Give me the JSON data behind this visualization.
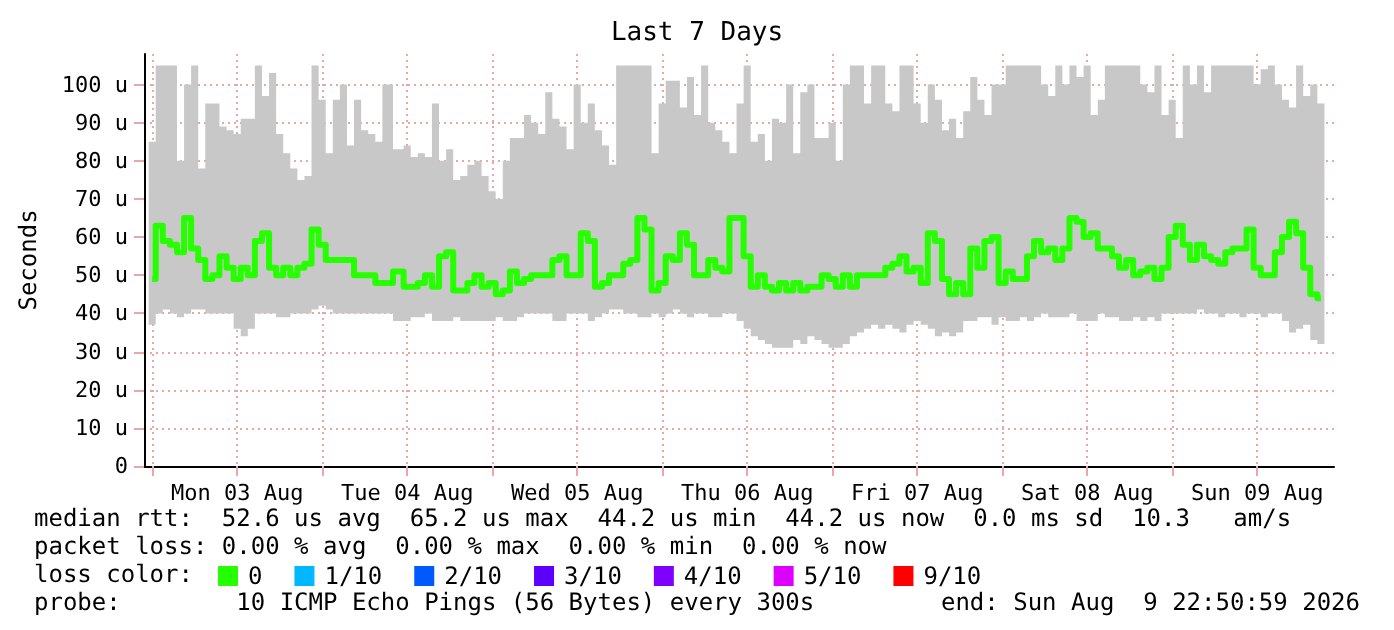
{
  "chart_data": {
    "type": "line",
    "title": "Last 7 Days",
    "ylabel": "Seconds",
    "annotations": [
      "median rtt:  52.6 us avg  65.2 us max  44.2 us min  44.2 us now  0.0 ms sd  10.3   am/s",
      "packet loss: 0.00 % avg  0.00 % max  0.00 % min  0.00 % now",
      "loss color:",
      "probe:        10 ICMP Echo Pings (56 Bytes) every 300s",
      "end: Sun Aug  9 22:50:59 2026"
    ],
    "xlim": [
      "2026-08-02T22:51",
      "2026-08-09T22:51"
    ],
    "xticks": [
      {
        "value": "2026-08-03T00:00",
        "label": null
      },
      {
        "value": "2026-08-03T12:00",
        "label": "Mon 03 Aug"
      },
      {
        "value": "2026-08-04T00:00",
        "label": null
      },
      {
        "value": "2026-08-04T12:00",
        "label": "Tue 04 Aug"
      },
      {
        "value": "2026-08-05T00:00",
        "label": null
      },
      {
        "value": "2026-08-05T12:00",
        "label": "Wed 05 Aug"
      },
      {
        "value": "2026-08-06T00:00",
        "label": null
      },
      {
        "value": "2026-08-06T12:00",
        "label": "Thu 06 Aug"
      },
      {
        "value": "2026-08-07T00:00",
        "label": null
      },
      {
        "value": "2026-08-07T12:00",
        "label": "Fri 07 Aug"
      },
      {
        "value": "2026-08-08T00:00",
        "label": null
      },
      {
        "value": "2026-08-08T12:00",
        "label": "Sat 08 Aug"
      },
      {
        "value": "2026-08-09T00:00",
        "label": null
      },
      {
        "value": "2026-08-09T12:00",
        "label": "Sun 09 Aug"
      }
    ],
    "ylim": [
      0,
      108
    ],
    "yticks": [
      {
        "value": 0,
        "label": "0"
      },
      {
        "value": 10,
        "label": "10 u"
      },
      {
        "value": 20,
        "label": "20 u"
      },
      {
        "value": 30,
        "label": "30 u"
      },
      {
        "value": 40,
        "label": "40 u"
      },
      {
        "value": 50,
        "label": "50 u"
      },
      {
        "value": 60,
        "label": "60 u"
      },
      {
        "value": 70,
        "label": "70 u"
      },
      {
        "value": 80,
        "label": "80 u"
      },
      {
        "value": 90,
        "label": "90 u"
      },
      {
        "value": 100,
        "label": "100 u"
      }
    ],
    "grid": true,
    "legend": "bottom",
    "series": [
      {
        "name": "0",
        "type": "step",
        "color": "#26ff00",
        "x": [
          "2026-08-03T00:00",
          "2026-08-03T01:00",
          "2026-08-03T02:00",
          "2026-08-03T03:00",
          "2026-08-03T04:00",
          "2026-08-03T05:00",
          "2026-08-03T06:00",
          "2026-08-03T07:00",
          "2026-08-03T08:00",
          "2026-08-03T09:00",
          "2026-08-03T10:00",
          "2026-08-03T11:00",
          "2026-08-03T12:00",
          "2026-08-03T13:00",
          "2026-08-03T14:00",
          "2026-08-03T15:00",
          "2026-08-03T16:00",
          "2026-08-03T17:00",
          "2026-08-03T18:00",
          "2026-08-03T19:00",
          "2026-08-03T20:00",
          "2026-08-03T21:00",
          "2026-08-03T22:00",
          "2026-08-03T23:00",
          "2026-08-04T00:00",
          "2026-08-04T01:00",
          "2026-08-04T02:00",
          "2026-08-04T03:00",
          "2026-08-04T04:00",
          "2026-08-04T05:00",
          "2026-08-04T06:00",
          "2026-08-04T07:00",
          "2026-08-04T08:00",
          "2026-08-04T09:00",
          "2026-08-04T11:00",
          "2026-08-04T12:00",
          "2026-08-04T13:00",
          "2026-08-04T14:00",
          "2026-08-04T15:00",
          "2026-08-04T16:00",
          "2026-08-04T17:00",
          "2026-08-04T18:00",
          "2026-08-04T19:00",
          "2026-08-04T20:00",
          "2026-08-04T21:00",
          "2026-08-04T22:00",
          "2026-08-04T23:00",
          "2026-08-05T00:00",
          "2026-08-05T01:00",
          "2026-08-05T02:00",
          "2026-08-05T03:00",
          "2026-08-05T04:00",
          "2026-08-05T05:00",
          "2026-08-05T06:00",
          "2026-08-05T07:00",
          "2026-08-05T08:00",
          "2026-08-05T09:00",
          "2026-08-05T10:00",
          "2026-08-05T11:00",
          "2026-08-05T12:00",
          "2026-08-05T13:00",
          "2026-08-05T14:00",
          "2026-08-05T15:00",
          "2026-08-05T16:00",
          "2026-08-05T17:00",
          "2026-08-05T18:00",
          "2026-08-05T19:00",
          "2026-08-05T20:00",
          "2026-08-05T21:00",
          "2026-08-05T22:00",
          "2026-08-05T23:00",
          "2026-08-06T00:00",
          "2026-08-06T01:00",
          "2026-08-06T02:00",
          "2026-08-06T03:00",
          "2026-08-06T04:00",
          "2026-08-06T05:00",
          "2026-08-06T06:00",
          "2026-08-06T07:00",
          "2026-08-06T08:00",
          "2026-08-06T09:00",
          "2026-08-06T10:00",
          "2026-08-06T11:00",
          "2026-08-06T12:00",
          "2026-08-06T13:00",
          "2026-08-06T14:00",
          "2026-08-06T15:00",
          "2026-08-06T16:00",
          "2026-08-06T17:00",
          "2026-08-06T18:00",
          "2026-08-06T19:00",
          "2026-08-06T20:00",
          "2026-08-06T21:00",
          "2026-08-06T22:00",
          "2026-08-06T23:00",
          "2026-08-07T00:00",
          "2026-08-07T01:00",
          "2026-08-07T02:00",
          "2026-08-07T03:00",
          "2026-08-07T04:00",
          "2026-08-07T05:00",
          "2026-08-07T06:00",
          "2026-08-07T07:00",
          "2026-08-07T08:00",
          "2026-08-07T09:00",
          "2026-08-07T10:00",
          "2026-08-07T11:00",
          "2026-08-07T12:00",
          "2026-08-07T13:00",
          "2026-08-07T14:00",
          "2026-08-07T15:00",
          "2026-08-07T16:00",
          "2026-08-07T17:00",
          "2026-08-07T18:00",
          "2026-08-07T19:00",
          "2026-08-07T20:00",
          "2026-08-07T21:00",
          "2026-08-07T22:00",
          "2026-08-07T23:00",
          "2026-08-08T00:00",
          "2026-08-08T01:00",
          "2026-08-08T02:00",
          "2026-08-08T03:00",
          "2026-08-08T04:00",
          "2026-08-08T05:00",
          "2026-08-08T06:00",
          "2026-08-08T07:00",
          "2026-08-08T08:00",
          "2026-08-08T09:00",
          "2026-08-08T10:00",
          "2026-08-08T11:00",
          "2026-08-08T12:00",
          "2026-08-08T13:00",
          "2026-08-08T14:00",
          "2026-08-08T15:00",
          "2026-08-08T16:00",
          "2026-08-08T17:00",
          "2026-08-08T18:00",
          "2026-08-08T19:00",
          "2026-08-08T20:00",
          "2026-08-08T21:00",
          "2026-08-08T22:00",
          "2026-08-08T23:00",
          "2026-08-09T00:00",
          "2026-08-09T01:00",
          "2026-08-09T02:00",
          "2026-08-09T03:00",
          "2026-08-09T04:00",
          "2026-08-09T05:00",
          "2026-08-09T06:00",
          "2026-08-09T07:00",
          "2026-08-09T08:00",
          "2026-08-09T09:00",
          "2026-08-09T10:00",
          "2026-08-09T11:00",
          "2026-08-09T12:00",
          "2026-08-09T13:00",
          "2026-08-09T14:00",
          "2026-08-09T15:00",
          "2026-08-09T16:00",
          "2026-08-09T17:00",
          "2026-08-09T18:00",
          "2026-08-09T19:00",
          "2026-08-09T20:00",
          "2026-08-09T21:00"
        ],
        "values": [
          49,
          63,
          59,
          58,
          56,
          65,
          57,
          54,
          49,
          50,
          55,
          52,
          49,
          52,
          50,
          59,
          61,
          52,
          50,
          52,
          50,
          52,
          53,
          62,
          58,
          54,
          54,
          54,
          54,
          50,
          50,
          50,
          48,
          48,
          51,
          47,
          47,
          48,
          50,
          47,
          55,
          56,
          46,
          46,
          48,
          50,
          47,
          48,
          45,
          46,
          51,
          48,
          49,
          50,
          50,
          50,
          54,
          55,
          50,
          50,
          61,
          59,
          47,
          48,
          50,
          50,
          53,
          54,
          65,
          62,
          46,
          48,
          55,
          54,
          61,
          58,
          50,
          50,
          54,
          52,
          51,
          65,
          65,
          55,
          47,
          50,
          47,
          46,
          48,
          46,
          48,
          46,
          47,
          47,
          50,
          49,
          47,
          50,
          47,
          50,
          50,
          50,
          50,
          52,
          53,
          55,
          51,
          52,
          48,
          61,
          59,
          49,
          45,
          48,
          45,
          57,
          52,
          59,
          60,
          48,
          51,
          49,
          49,
          55,
          59,
          56,
          57,
          54,
          57,
          65,
          64,
          60,
          61,
          57,
          57,
          55,
          52,
          54,
          50,
          51,
          52,
          49,
          52,
          60,
          63,
          58,
          54,
          58,
          55,
          54,
          53,
          56,
          57,
          57,
          62,
          52,
          50,
          50,
          56,
          60,
          64,
          61,
          52,
          45,
          44
        ],
        "lower": [
          37,
          40,
          41,
          40,
          39,
          40,
          41,
          41,
          40,
          40,
          40,
          40,
          36,
          34,
          36,
          40,
          40,
          40,
          39,
          39,
          40,
          40,
          40,
          41,
          42,
          41,
          40,
          40,
          40,
          40,
          40,
          40,
          40,
          40,
          38,
          38,
          39,
          39,
          40,
          38,
          38,
          38,
          39,
          38,
          38,
          38,
          38,
          38,
          39,
          38,
          38,
          39,
          40,
          40,
          40,
          40,
          38,
          38,
          40,
          40,
          40,
          38,
          39,
          40,
          41,
          41,
          40,
          40,
          39,
          39,
          40,
          39,
          40,
          41,
          40,
          39,
          40,
          40,
          39,
          39,
          40,
          40,
          38,
          36,
          34,
          33,
          32,
          31,
          31,
          31,
          33,
          32,
          34,
          33,
          32,
          31,
          31,
          32,
          34,
          35,
          36,
          37,
          36,
          37,
          36,
          35,
          37,
          38,
          37,
          36,
          34,
          35,
          34,
          35,
          38,
          38,
          39,
          39,
          37,
          39,
          38,
          38,
          39,
          38,
          39,
          40,
          39,
          39,
          39,
          40,
          38,
          38,
          38,
          40,
          39,
          39,
          38,
          38,
          39,
          38,
          39,
          38,
          40,
          40,
          40,
          40,
          40,
          41,
          40,
          40,
          39,
          40,
          40,
          39,
          40,
          40,
          39,
          40,
          40,
          38,
          35,
          36,
          37,
          33,
          32
        ],
        "upper": [
          85,
          105,
          105,
          105,
          80,
          100,
          105,
          78,
          95,
          95,
          89,
          88,
          87,
          91,
          91,
          105,
          97,
          103,
          87,
          82,
          78,
          75,
          76,
          105,
          96,
          82,
          96,
          100,
          84,
          96,
          88,
          87,
          85,
          100,
          83,
          84,
          81,
          82,
          81,
          95,
          80,
          83,
          75,
          76,
          79,
          80,
          76,
          72,
          70,
          80,
          86,
          86,
          92,
          90,
          87,
          98,
          91,
          89,
          83,
          100,
          90,
          95,
          88,
          84,
          79,
          105,
          105,
          105,
          105,
          105,
          82,
          95,
          101,
          101,
          94,
          102,
          92,
          105,
          90,
          88,
          85,
          82,
          95,
          105,
          85,
          87,
          80,
          91,
          90,
          100,
          82,
          98,
          100,
          86,
          86,
          90,
          80,
          100,
          105,
          105,
          95,
          105,
          105,
          95,
          93,
          105,
          105,
          95,
          90,
          100,
          96,
          88,
          91,
          86,
          93,
          102,
          96,
          92,
          100,
          100,
          105,
          105,
          105,
          105,
          105,
          100,
          97,
          105,
          100,
          105,
          102,
          105,
          92,
          96,
          105,
          105,
          105,
          105,
          105,
          100,
          98,
          105,
          92,
          96,
          86,
          105,
          100,
          105,
          98,
          105,
          105,
          105,
          105,
          105,
          105,
          100,
          104,
          105,
          100,
          96,
          94,
          105,
          97,
          100,
          95
        ]
      },
      {
        "name": "1/10",
        "color": "#00b8ff"
      },
      {
        "name": "2/10",
        "color": "#0059ff"
      },
      {
        "name": "3/10",
        "color": "#5e00ff"
      },
      {
        "name": "4/10",
        "color": "#7e00ff"
      },
      {
        "name": "5/10",
        "color": "#dd00ff"
      },
      {
        "name": "9/10",
        "color": "#ff0000"
      }
    ]
  }
}
